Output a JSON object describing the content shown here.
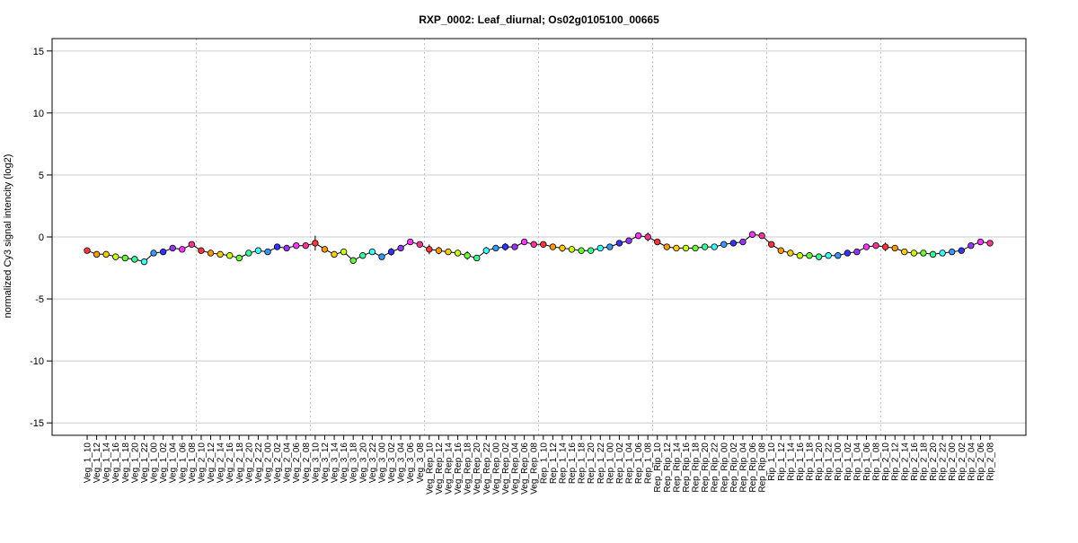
{
  "chart_data": {
    "type": "line",
    "title": "RXP_0002: Leaf_diurnal; Os02g0105100_00665",
    "ylabel": "normalized Cy3 signal intencity (log2)",
    "xlabel": "",
    "ylim": [
      -16,
      16
    ],
    "yticks": [
      -15,
      -10,
      -5,
      0,
      5,
      10,
      15
    ],
    "grid": true,
    "categories": [
      "Veg_1_10",
      "Veg_1_12",
      "Veg_1_14",
      "Veg_1_16",
      "Veg_1_18",
      "Veg_1_20",
      "Veg_1_22",
      "Veg_1_00",
      "Veg_1_02",
      "Veg_1_04",
      "Veg_1_06",
      "Veg_1_08",
      "Veg_2_10",
      "Veg_2_12",
      "Veg_2_14",
      "Veg_2_16",
      "Veg_2_18",
      "Veg_2_20",
      "Veg_2_22",
      "Veg_2_00",
      "Veg_2_02",
      "Veg_2_04",
      "Veg_2_06",
      "Veg_2_08",
      "Veg_3_10",
      "Veg_3_12",
      "Veg_3_14",
      "Veg_3_16",
      "Veg_3_18",
      "Veg_3_20",
      "Veg_3_22",
      "Veg_3_00",
      "Veg_3_02",
      "Veg_3_04",
      "Veg_3_06",
      "Veg_3_08",
      "Veg_Rep_10",
      "Veg_Rep_12",
      "Veg_Rep_14",
      "Veg_Rep_16",
      "Veg_Rep_18",
      "Veg_Rep_20",
      "Veg_Rep_22",
      "Veg_Rep_00",
      "Veg_Rep_02",
      "Veg_Rep_04",
      "Veg_Rep_06",
      "Veg_Rep_08",
      "Rep_1_10",
      "Rep_1_12",
      "Rep_1_14",
      "Rep_1_16",
      "Rep_1_18",
      "Rep_1_20",
      "Rep_1_22",
      "Rep_1_00",
      "Rep_1_02",
      "Rep_1_04",
      "Rep_1_06",
      "Rep_1_08",
      "Rep_Rip_10",
      "Rep_Rip_12",
      "Rep_Rip_14",
      "Rep_Rip_16",
      "Rep_Rip_18",
      "Rep_Rip_20",
      "Rep_Rip_22",
      "Rep_Rip_00",
      "Rep_Rip_02",
      "Rep_Rip_04",
      "Rep_Rip_06",
      "Rep_Rip_08",
      "Rip_1_10",
      "Rip_1_12",
      "Rip_1_14",
      "Rip_1_16",
      "Rip_1_18",
      "Rip_1_20",
      "Rip_1_22",
      "Rip_1_00",
      "Rip_1_02",
      "Rip_1_04",
      "Rip_1_06",
      "Rip_1_08",
      "Rip_2_10",
      "Rip_2_12",
      "Rip_2_14",
      "Rip_2_16",
      "Rip_2_18",
      "Rip_2_20",
      "Rip_2_22",
      "Rip_2_00",
      "Rip_2_02",
      "Rip_2_04",
      "Rip_2_06",
      "Rip_2_08"
    ],
    "values": [
      -1.1,
      -1.4,
      -1.4,
      -1.6,
      -1.7,
      -1.8,
      -2.0,
      -1.3,
      -1.2,
      -0.9,
      -1.0,
      -0.6,
      -1.1,
      -1.3,
      -1.4,
      -1.5,
      -1.7,
      -1.3,
      -1.1,
      -1.2,
      -0.8,
      -0.9,
      -0.7,
      -0.7,
      -0.5,
      -1.0,
      -1.4,
      -1.2,
      -1.9,
      -1.5,
      -1.2,
      -1.6,
      -1.2,
      -0.9,
      -0.4,
      -0.6,
      -1.0,
      -1.1,
      -1.2,
      -1.3,
      -1.5,
      -1.7,
      -1.1,
      -0.9,
      -0.8,
      -0.8,
      -0.4,
      -0.6,
      -0.6,
      -0.8,
      -0.9,
      -1.0,
      -1.1,
      -1.1,
      -0.9,
      -0.8,
      -0.5,
      -0.3,
      0.1,
      0.0,
      -0.4,
      -0.8,
      -0.9,
      -0.9,
      -0.9,
      -0.8,
      -0.8,
      -0.6,
      -0.5,
      -0.4,
      0.2,
      0.1,
      -0.6,
      -1.1,
      -1.3,
      -1.5,
      -1.5,
      -1.6,
      -1.5,
      -1.5,
      -1.3,
      -1.2,
      -0.8,
      -0.7,
      -0.8,
      -0.9,
      -1.2,
      -1.3,
      -1.3,
      -1.4,
      -1.3,
      -1.2,
      -1.1,
      -0.7,
      -0.4,
      -0.5
    ],
    "errors": [
      0.15,
      0.15,
      0.1,
      0.25,
      0.15,
      0.25,
      0.2,
      0.15,
      0.1,
      0.1,
      0.15,
      0.15,
      0.1,
      0.1,
      0.1,
      0.1,
      0.1,
      0.1,
      0.1,
      0.1,
      0.2,
      0.15,
      0.1,
      0.15,
      0.6,
      0.15,
      0.15,
      0.1,
      0.15,
      0.2,
      0.15,
      0.1,
      0.3,
      0.15,
      0.1,
      0.1,
      0.4,
      0.3,
      0.15,
      0.15,
      0.35,
      0.2,
      0.3,
      0.15,
      0.3,
      0.2,
      0.15,
      0.1,
      0.1,
      0.1,
      0.3,
      0.1,
      0.1,
      0.2,
      0.1,
      0.1,
      0.1,
      0.1,
      0.1,
      0.35,
      0.1,
      0.1,
      0.1,
      0.1,
      0.1,
      0.1,
      0.1,
      0.1,
      0.1,
      0.1,
      0.1,
      0.1,
      0.2,
      0.15,
      0.1,
      0.2,
      0.1,
      0.1,
      0.1,
      0.1,
      0.1,
      0.15,
      0.1,
      0.1,
      0.35,
      0.2,
      0.1,
      0.1,
      0.1,
      0.1,
      0.1,
      0.1,
      0.1,
      0.1,
      0.1,
      0.1
    ],
    "group_separators_after": [
      11,
      23,
      35,
      47,
      59,
      71,
      83
    ],
    "point_colors": [
      "#ff3333",
      "#ff9900",
      "#ffcc00",
      "#ccff00",
      "#66ff33",
      "#33ff99",
      "#33ffff",
      "#3399ff",
      "#3333ff",
      "#9933ff",
      "#ff33ff",
      "#ff3399"
    ]
  }
}
